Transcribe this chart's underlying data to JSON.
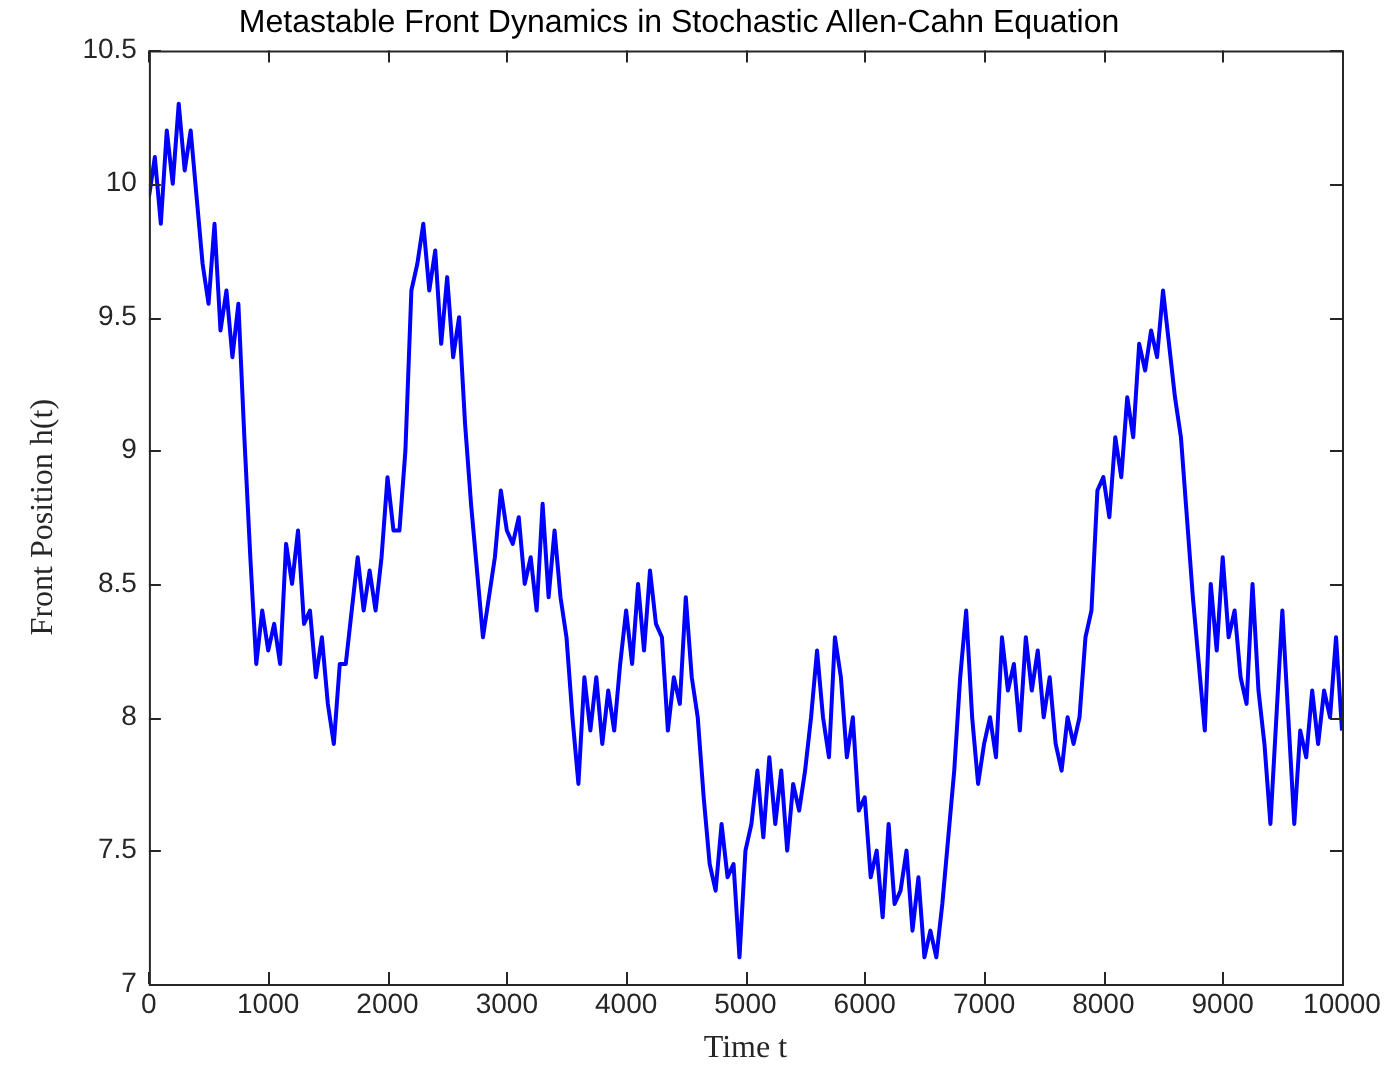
{
  "chart_data": {
    "type": "line",
    "title": "Metastable Front Dynamics in Stochastic Allen-Cahn Equation",
    "xlabel": "Time t",
    "ylabel": "Front Position h(t)",
    "x": [
      0,
      50,
      100,
      150,
      200,
      250,
      300,
      350,
      400,
      450,
      500,
      550,
      600,
      650,
      700,
      750,
      800,
      850,
      900,
      950,
      1000,
      1050,
      1100,
      1150,
      1200,
      1250,
      1300,
      1350,
      1400,
      1450,
      1500,
      1550,
      1600,
      1650,
      1700,
      1750,
      1800,
      1850,
      1900,
      1950,
      2000,
      2050,
      2100,
      2150,
      2200,
      2250,
      2300,
      2350,
      2400,
      2450,
      2500,
      2550,
      2600,
      2650,
      2700,
      2750,
      2800,
      2850,
      2900,
      2950,
      3000,
      3050,
      3100,
      3150,
      3200,
      3250,
      3300,
      3350,
      3400,
      3450,
      3500,
      3550,
      3600,
      3650,
      3700,
      3750,
      3800,
      3850,
      3900,
      3950,
      4000,
      4050,
      4100,
      4150,
      4200,
      4250,
      4300,
      4350,
      4400,
      4450,
      4500,
      4550,
      4600,
      4650,
      4700,
      4750,
      4800,
      4850,
      4900,
      4950,
      5000,
      5050,
      5100,
      5150,
      5200,
      5250,
      5300,
      5350,
      5400,
      5450,
      5500,
      5550,
      5600,
      5650,
      5700,
      5750,
      5800,
      5850,
      5900,
      5950,
      6000,
      6050,
      6100,
      6150,
      6200,
      6250,
      6300,
      6350,
      6400,
      6450,
      6500,
      6550,
      6600,
      6650,
      6700,
      6750,
      6800,
      6850,
      6900,
      6950,
      7000,
      7050,
      7100,
      7150,
      7200,
      7250,
      7300,
      7350,
      7400,
      7450,
      7500,
      7550,
      7600,
      7650,
      7700,
      7750,
      7800,
      7850,
      7900,
      7950,
      8000,
      8050,
      8100,
      8150,
      8200,
      8250,
      8300,
      8350,
      8400,
      8450,
      8500,
      8550,
      8600,
      8650,
      8700,
      8750,
      8800,
      8850,
      8900,
      8950,
      9000,
      9050,
      9100,
      9150,
      9200,
      9250,
      9300,
      9350,
      9400,
      9450,
      9500,
      9550,
      9600,
      9650,
      9700,
      9750,
      9800,
      9850,
      9900,
      9950,
      10000
    ],
    "series": [
      {
        "color": "#0000ff",
        "values": [
          9.95,
          10.1,
          9.85,
          10.2,
          10.0,
          10.3,
          10.05,
          10.2,
          9.95,
          9.7,
          9.55,
          9.85,
          9.45,
          9.6,
          9.35,
          9.55,
          9.05,
          8.6,
          8.2,
          8.4,
          8.25,
          8.35,
          8.2,
          8.65,
          8.5,
          8.7,
          8.35,
          8.4,
          8.15,
          8.3,
          8.05,
          7.9,
          8.2,
          8.2,
          8.4,
          8.6,
          8.4,
          8.55,
          8.4,
          8.6,
          8.9,
          8.7,
          8.7,
          9.0,
          9.6,
          9.7,
          9.85,
          9.6,
          9.75,
          9.4,
          9.65,
          9.35,
          9.5,
          9.1,
          8.8,
          8.55,
          8.3,
          8.45,
          8.6,
          8.85,
          8.7,
          8.65,
          8.75,
          8.5,
          8.6,
          8.4,
          8.8,
          8.45,
          8.7,
          8.45,
          8.3,
          8.0,
          7.75,
          8.15,
          7.95,
          8.15,
          7.9,
          8.1,
          7.95,
          8.2,
          8.4,
          8.2,
          8.5,
          8.25,
          8.55,
          8.35,
          8.3,
          7.95,
          8.15,
          8.05,
          8.45,
          8.15,
          8.0,
          7.7,
          7.45,
          7.35,
          7.6,
          7.4,
          7.45,
          7.1,
          7.5,
          7.6,
          7.8,
          7.55,
          7.85,
          7.6,
          7.8,
          7.5,
          7.75,
          7.65,
          7.8,
          8.0,
          8.25,
          8.0,
          7.85,
          8.3,
          8.15,
          7.85,
          8.0,
          7.65,
          7.7,
          7.4,
          7.5,
          7.25,
          7.6,
          7.3,
          7.35,
          7.5,
          7.2,
          7.4,
          7.1,
          7.2,
          7.1,
          7.3,
          7.55,
          7.8,
          8.15,
          8.4,
          8.0,
          7.75,
          7.9,
          8.0,
          7.85,
          8.3,
          8.1,
          8.2,
          7.95,
          8.3,
          8.1,
          8.25,
          8.0,
          8.15,
          7.9,
          7.8,
          8.0,
          7.9,
          8.0,
          8.3,
          8.4,
          8.85,
          8.9,
          8.75,
          9.05,
          8.9,
          9.2,
          9.05,
          9.4,
          9.3,
          9.45,
          9.35,
          9.6,
          9.4,
          9.2,
          9.05,
          8.75,
          8.45,
          8.2,
          7.95,
          8.5,
          8.25,
          8.6,
          8.3,
          8.4,
          8.15,
          8.05,
          8.5,
          8.1,
          7.9,
          7.6,
          8.0,
          8.4,
          8.0,
          7.6,
          7.95,
          7.85,
          8.1,
          7.9,
          8.1,
          8.0,
          8.3,
          7.95
        ]
      }
    ],
    "xlim": [
      0,
      10000
    ],
    "xticks": [
      0,
      1000,
      2000,
      3000,
      4000,
      5000,
      6000,
      7000,
      8000,
      9000,
      10000
    ],
    "ylim": [
      7,
      10.5
    ],
    "yticks": [
      7,
      7.5,
      8,
      8.5,
      9,
      9.5,
      10,
      10.5
    ],
    "grid": false,
    "legend": false,
    "marker": "none",
    "line_style": "solid"
  }
}
